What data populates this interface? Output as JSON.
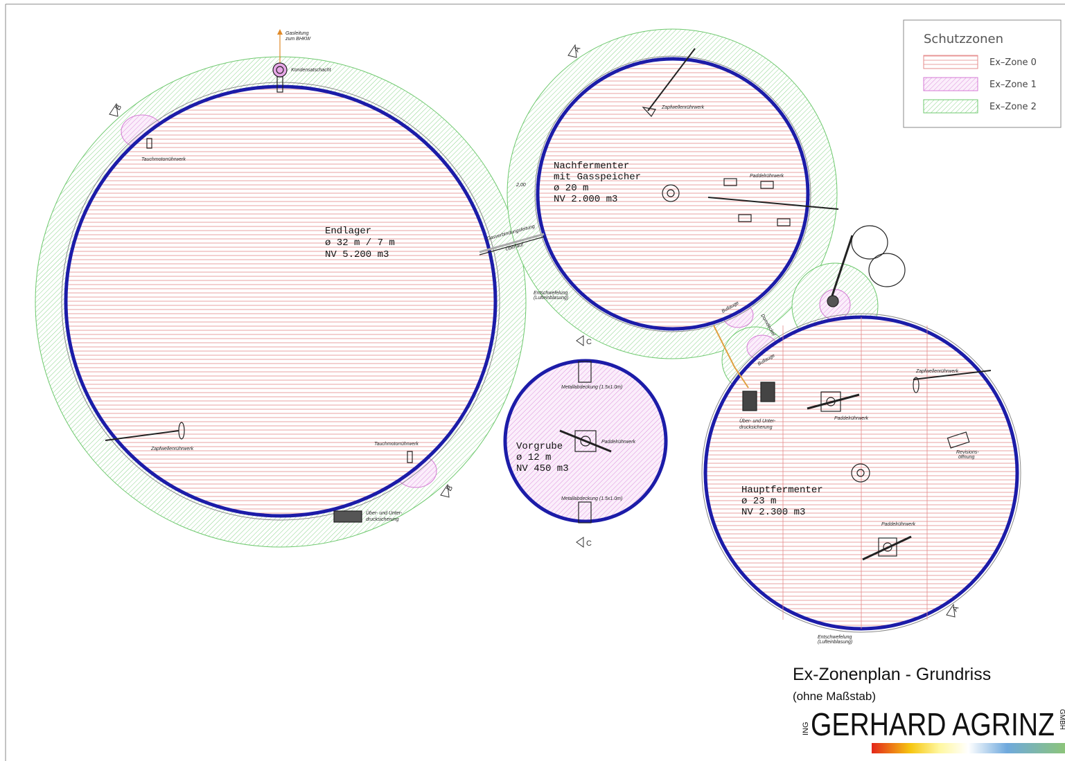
{
  "legend": {
    "title": "Schutzzonen",
    "items": [
      "Ex–Zone 0",
      "Ex–Zone 1",
      "Ex–Zone 2"
    ]
  },
  "tanks": [
    {
      "lines": [
        "Endlager",
        "ø 32 m / 7 m",
        "NV 5.200 m3"
      ]
    },
    {
      "lines": [
        "Nachfermenter",
        "mit Gasspeicher",
        "ø 20 m",
        "NV 2.000 m3"
      ]
    },
    {
      "lines": [
        "Vorgrube",
        "ø 12 m",
        "NV 450 m3"
      ]
    },
    {
      "lines": [
        "Hauptfermenter",
        "ø 23 m",
        "NV 2.300 m3"
      ]
    }
  ],
  "annotations": [
    "Gasleitung",
    "zum BHKW",
    "Kondensatschacht",
    "Tauchmotorrührwerk",
    "Zapfwellenrührwerk",
    "Tauchmotorrührwerk",
    "Über- und Unter-",
    "drucksicherung",
    "Zapfwellenrührwerk",
    "Paddelrührwerk",
    "2,00",
    "Gasverbindungsleitung",
    "Überlauf",
    "Entschwefelung",
    "(Lufteinblasung)",
    "Bullauge",
    "Domdeckel",
    "Bullauge",
    "Metallabdeckung (1.5x1.0m)",
    "Paddelrührwerk",
    "Metallabdeckung (1.5x1.0m)",
    "Zapfwellenrührwerk",
    "Paddelrührwerk",
    "Über- und Unter-",
    "drucksicherung",
    "Revisions-",
    "öffnung",
    "Paddelrührwerk",
    "Entschwefelung",
    "(Lufteinblasung)"
  ],
  "section_marks": [
    "B",
    "B",
    "A",
    "A",
    "C",
    "C"
  ],
  "title_block": {
    "title": "Ex-Zonenplan - Grundriss",
    "subtitle": "(ohne Maßstab)",
    "logo_prefix": "ING",
    "logo_name": "GERHARD AGRINZ",
    "logo_suffix": "GMBH"
  }
}
